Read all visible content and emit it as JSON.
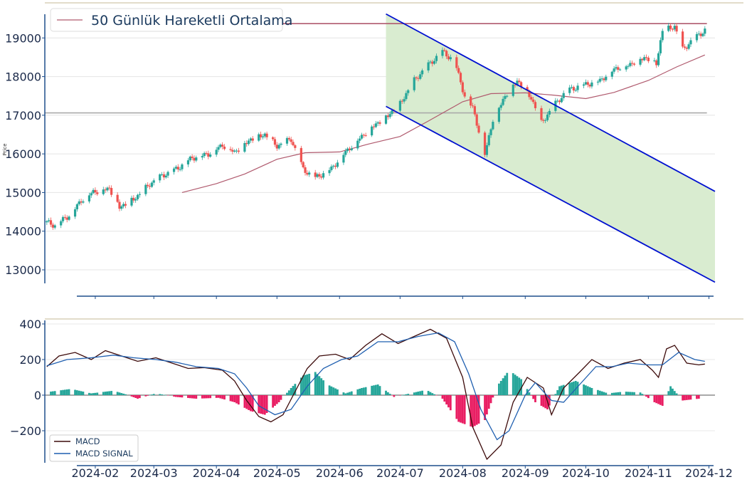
{
  "chart_data": [
    {
      "type": "candlestick",
      "ylabel": "Price",
      "legend": {
        "label": "50 Günlük Hareketli Ortalama",
        "position": "top-left"
      },
      "ylim": [
        12650,
        19650
      ],
      "xlim": [
        "2024-01-07",
        "2024-12-04"
      ],
      "y_ticks": [
        13000,
        14000,
        15000,
        16000,
        17000,
        18000,
        19000
      ],
      "x_ticks": [
        "2024-02",
        "2024-03",
        "2024-04",
        "2024-05",
        "2024-06",
        "2024-07",
        "2024-08",
        "2024-09",
        "2024-10",
        "2024-11",
        "2024-12"
      ],
      "colors": {
        "up": "#26a69a",
        "down": "#ef5350",
        "ma": "#b05a6e",
        "channel": "#0010d0",
        "channel_fill": "#d9ecd0",
        "level": "#aaaaaa"
      },
      "horizontal_levels": [
        {
          "y": 19370,
          "from": "2024-03-15",
          "to": "2024-11-30",
          "color": "#b05a6e"
        },
        {
          "y": 17060,
          "from": "2024-01-07",
          "to": "2024-11-30",
          "color": "#aaaaaa"
        }
      ],
      "channel": {
        "upper": [
          [
            "2024-06-24",
            19620
          ],
          [
            "2024-12-04",
            15030
          ]
        ],
        "lower": [
          [
            "2024-06-24",
            17230
          ],
          [
            "2024-12-04",
            12680
          ]
        ]
      },
      "moving_average": [
        [
          "2024-03-15",
          15000
        ],
        [
          "2024-04-01",
          15230
        ],
        [
          "2024-04-15",
          15480
        ],
        [
          "2024-05-01",
          15860
        ],
        [
          "2024-05-15",
          16030
        ],
        [
          "2024-06-01",
          16050
        ],
        [
          "2024-06-15",
          16250
        ],
        [
          "2024-07-01",
          16450
        ],
        [
          "2024-07-15",
          16850
        ],
        [
          "2024-08-01",
          17350
        ],
        [
          "2024-08-15",
          17560
        ],
        [
          "2024-09-01",
          17580
        ],
        [
          "2024-09-15",
          17520
        ],
        [
          "2024-10-01",
          17430
        ],
        [
          "2024-10-15",
          17590
        ],
        [
          "2024-11-01",
          17900
        ],
        [
          "2024-11-15",
          18250
        ],
        [
          "2024-11-29",
          18560
        ]
      ],
      "close_path": [
        [
          "2024-01-08",
          14230
        ],
        [
          "2024-01-12",
          14150
        ],
        [
          "2024-01-20",
          14450
        ],
        [
          "2024-01-25",
          14800
        ],
        [
          "2024-01-31",
          15020
        ],
        [
          "2024-02-03",
          15050
        ],
        [
          "2024-02-08",
          15110
        ],
        [
          "2024-02-13",
          14620
        ],
        [
          "2024-02-20",
          14820
        ],
        [
          "2024-02-29",
          15260
        ],
        [
          "2024-03-05",
          15430
        ],
        [
          "2024-03-12",
          15600
        ],
        [
          "2024-03-20",
          15900
        ],
        [
          "2024-03-28",
          16000
        ],
        [
          "2024-04-04",
          16230
        ],
        [
          "2024-04-10",
          16050
        ],
        [
          "2024-04-18",
          16380
        ],
        [
          "2024-04-25",
          16500
        ],
        [
          "2024-05-01",
          16200
        ],
        [
          "2024-05-08",
          16380
        ],
        [
          "2024-05-14",
          15600
        ],
        [
          "2024-05-20",
          15380
        ],
        [
          "2024-05-28",
          15620
        ],
        [
          "2024-06-03",
          16000
        ],
        [
          "2024-06-10",
          16360
        ],
        [
          "2024-06-17",
          16700
        ],
        [
          "2024-06-24",
          16950
        ],
        [
          "2024-07-01",
          17300
        ],
        [
          "2024-07-08",
          17900
        ],
        [
          "2024-07-15",
          18300
        ],
        [
          "2024-07-22",
          18650
        ],
        [
          "2024-07-28",
          18400
        ],
        [
          "2024-08-02",
          17500
        ],
        [
          "2024-08-06",
          17200
        ],
        [
          "2024-08-12",
          16000
        ],
        [
          "2024-08-16",
          16900
        ],
        [
          "2024-08-22",
          17500
        ],
        [
          "2024-08-28",
          17900
        ],
        [
          "2024-09-04",
          17450
        ],
        [
          "2024-09-09",
          16800
        ],
        [
          "2024-09-16",
          17300
        ],
        [
          "2024-09-22",
          17650
        ],
        [
          "2024-10-01",
          17800
        ],
        [
          "2024-10-08",
          17900
        ],
        [
          "2024-10-15",
          18200
        ],
        [
          "2024-10-22",
          18300
        ],
        [
          "2024-10-30",
          18500
        ],
        [
          "2024-11-05",
          18350
        ],
        [
          "2024-11-08",
          19200
        ],
        [
          "2024-11-14",
          19300
        ],
        [
          "2024-11-18",
          18700
        ],
        [
          "2024-11-24",
          19000
        ],
        [
          "2024-11-29",
          19200
        ]
      ]
    },
    {
      "type": "line+bar",
      "ylim": [
        -380,
        420
      ],
      "y_ticks": [
        -200,
        0,
        200,
        400
      ],
      "legend_position": "bottom-left",
      "series": [
        {
          "name": "MACD",
          "color": "#3c0a0a",
          "points": [
            [
              "2024-01-08",
              160
            ],
            [
              "2024-01-14",
              220
            ],
            [
              "2024-01-22",
              240
            ],
            [
              "2024-01-30",
              200
            ],
            [
              "2024-02-06",
              250
            ],
            [
              "2024-02-14",
              220
            ],
            [
              "2024-02-22",
              190
            ],
            [
              "2024-03-02",
              210
            ],
            [
              "2024-03-10",
              180
            ],
            [
              "2024-03-18",
              150
            ],
            [
              "2024-03-26",
              155
            ],
            [
              "2024-04-04",
              140
            ],
            [
              "2024-04-10",
              80
            ],
            [
              "2024-04-16",
              -30
            ],
            [
              "2024-04-22",
              -120
            ],
            [
              "2024-04-28",
              -150
            ],
            [
              "2024-05-04",
              -110
            ],
            [
              "2024-05-10",
              20
            ],
            [
              "2024-05-16",
              150
            ],
            [
              "2024-05-22",
              220
            ],
            [
              "2024-05-30",
              230
            ],
            [
              "2024-06-06",
              200
            ],
            [
              "2024-06-14",
              280
            ],
            [
              "2024-06-22",
              345
            ],
            [
              "2024-06-30",
              290
            ],
            [
              "2024-07-08",
              330
            ],
            [
              "2024-07-16",
              370
            ],
            [
              "2024-07-24",
              320
            ],
            [
              "2024-08-01",
              100
            ],
            [
              "2024-08-06",
              -180
            ],
            [
              "2024-08-13",
              -360
            ],
            [
              "2024-08-20",
              -280
            ],
            [
              "2024-08-26",
              -40
            ],
            [
              "2024-09-02",
              100
            ],
            [
              "2024-09-10",
              40
            ],
            [
              "2024-09-14",
              -110
            ],
            [
              "2024-09-20",
              40
            ],
            [
              "2024-09-28",
              130
            ],
            [
              "2024-10-04",
              200
            ],
            [
              "2024-10-12",
              150
            ],
            [
              "2024-10-20",
              180
            ],
            [
              "2024-10-28",
              200
            ],
            [
              "2024-11-03",
              140
            ],
            [
              "2024-11-06",
              100
            ],
            [
              "2024-11-10",
              260
            ],
            [
              "2024-11-14",
              280
            ],
            [
              "2024-11-20",
              180
            ],
            [
              "2024-11-26",
              170
            ],
            [
              "2024-11-29",
              175
            ]
          ]
        },
        {
          "name": "MACD SIGNAL",
          "color": "#1f5fb0",
          "points": [
            [
              "2024-01-08",
              165
            ],
            [
              "2024-01-18",
              200
            ],
            [
              "2024-01-30",
              210
            ],
            [
              "2024-02-10",
              225
            ],
            [
              "2024-02-20",
              210
            ],
            [
              "2024-03-02",
              200
            ],
            [
              "2024-03-12",
              185
            ],
            [
              "2024-03-22",
              160
            ],
            [
              "2024-04-02",
              150
            ],
            [
              "2024-04-10",
              120
            ],
            [
              "2024-04-16",
              40
            ],
            [
              "2024-04-22",
              -60
            ],
            [
              "2024-04-30",
              -110
            ],
            [
              "2024-05-08",
              -80
            ],
            [
              "2024-05-16",
              50
            ],
            [
              "2024-05-24",
              150
            ],
            [
              "2024-06-02",
              200
            ],
            [
              "2024-06-10",
              220
            ],
            [
              "2024-06-20",
              300
            ],
            [
              "2024-06-30",
              300
            ],
            [
              "2024-07-10",
              330
            ],
            [
              "2024-07-20",
              350
            ],
            [
              "2024-07-28",
              300
            ],
            [
              "2024-08-04",
              120
            ],
            [
              "2024-08-10",
              -80
            ],
            [
              "2024-08-18",
              -250
            ],
            [
              "2024-08-24",
              -200
            ],
            [
              "2024-09-01",
              0
            ],
            [
              "2024-09-06",
              70
            ],
            [
              "2024-09-14",
              -30
            ],
            [
              "2024-09-20",
              -40
            ],
            [
              "2024-09-28",
              60
            ],
            [
              "2024-10-06",
              160
            ],
            [
              "2024-10-14",
              160
            ],
            [
              "2024-10-22",
              180
            ],
            [
              "2024-11-01",
              170
            ],
            [
              "2024-11-08",
              170
            ],
            [
              "2024-11-16",
              240
            ],
            [
              "2024-11-24",
              200
            ],
            [
              "2024-11-29",
              190
            ]
          ]
        }
      ],
      "histogram": {
        "positive_color": "#26a69a",
        "negative_color": "#e91e63",
        "points": [
          [
            "2024-01-10",
            20
          ],
          [
            "2024-01-20",
            35
          ],
          [
            "2024-01-30",
            10
          ],
          [
            "2024-02-10",
            25
          ],
          [
            "2024-02-16",
            5
          ],
          [
            "2024-02-22",
            -20
          ],
          [
            "2024-03-02",
            10
          ],
          [
            "2024-03-12",
            -10
          ],
          [
            "2024-03-22",
            -20
          ],
          [
            "2024-04-02",
            -15
          ],
          [
            "2024-04-10",
            -40
          ],
          [
            "2024-04-18",
            -90
          ],
          [
            "2024-04-25",
            -110
          ],
          [
            "2024-05-02",
            -40
          ],
          [
            "2024-05-08",
            40
          ],
          [
            "2024-05-14",
            110
          ],
          [
            "2024-05-20",
            130
          ],
          [
            "2024-05-26",
            60
          ],
          [
            "2024-06-04",
            10
          ],
          [
            "2024-06-12",
            40
          ],
          [
            "2024-06-20",
            60
          ],
          [
            "2024-06-28",
            -10
          ],
          [
            "2024-07-06",
            10
          ],
          [
            "2024-07-14",
            30
          ],
          [
            "2024-07-22",
            -20
          ],
          [
            "2024-07-30",
            -150
          ],
          [
            "2024-08-06",
            -180
          ],
          [
            "2024-08-12",
            -140
          ],
          [
            "2024-08-18",
            50
          ],
          [
            "2024-08-24",
            140
          ],
          [
            "2024-08-30",
            90
          ],
          [
            "2024-09-06",
            -40
          ],
          [
            "2024-09-12",
            -80
          ],
          [
            "2024-09-18",
            50
          ],
          [
            "2024-09-26",
            80
          ],
          [
            "2024-10-04",
            40
          ],
          [
            "2024-10-12",
            10
          ],
          [
            "2024-10-20",
            20
          ],
          [
            "2024-10-28",
            15
          ],
          [
            "2024-11-04",
            -40
          ],
          [
            "2024-11-08",
            -60
          ],
          [
            "2024-11-12",
            50
          ],
          [
            "2024-11-18",
            -30
          ],
          [
            "2024-11-26",
            -20
          ]
        ]
      }
    }
  ]
}
